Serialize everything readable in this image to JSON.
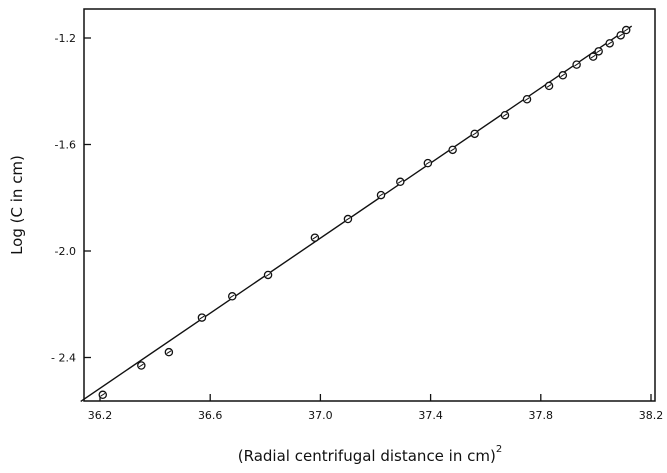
{
  "chart_data": {
    "type": "scatter",
    "title": "",
    "xlabel": "(Radial centrifugal distance in cm)",
    "xlabel_superscript": "2",
    "ylabel": "Log (C in cm)",
    "xlim": [
      36.1,
      38.2
    ],
    "ylim": [
      -2.6,
      -1.1
    ],
    "x_ticks": [
      36.2,
      36.6,
      37.0,
      37.4,
      37.8,
      38.2
    ],
    "x_tick_labels": [
      "36.2",
      "36.6",
      "37.0",
      "37.4",
      "37.8",
      "38.2"
    ],
    "y_ticks": [
      -1.2,
      -1.6,
      -2.0,
      -2.4
    ],
    "y_tick_labels": [
      "-1.2",
      "-1.6",
      "-2.0",
      "- 2.4"
    ],
    "grid": false,
    "series": [
      {
        "x": [
          36.21,
          36.35,
          36.45,
          36.57,
          36.68,
          36.81,
          36.98,
          37.1,
          37.22,
          37.29,
          37.39,
          37.48,
          37.56,
          37.67,
          37.75,
          37.83,
          37.88,
          37.93,
          37.99,
          38.01,
          38.05,
          38.09,
          38.11
        ],
        "y": [
          -2.54,
          -2.43,
          -2.38,
          -2.25,
          -2.17,
          -2.09,
          -1.95,
          -1.88,
          -1.79,
          -1.74,
          -1.67,
          -1.62,
          -1.56,
          -1.49,
          -1.43,
          -1.38,
          -1.34,
          -1.3,
          -1.27,
          -1.25,
          -1.22,
          -1.19,
          -1.17
        ]
      }
    ],
    "fit_line": {
      "x": [
        36.13,
        38.13
      ],
      "y": [
        -2.565,
        -1.155
      ]
    }
  }
}
